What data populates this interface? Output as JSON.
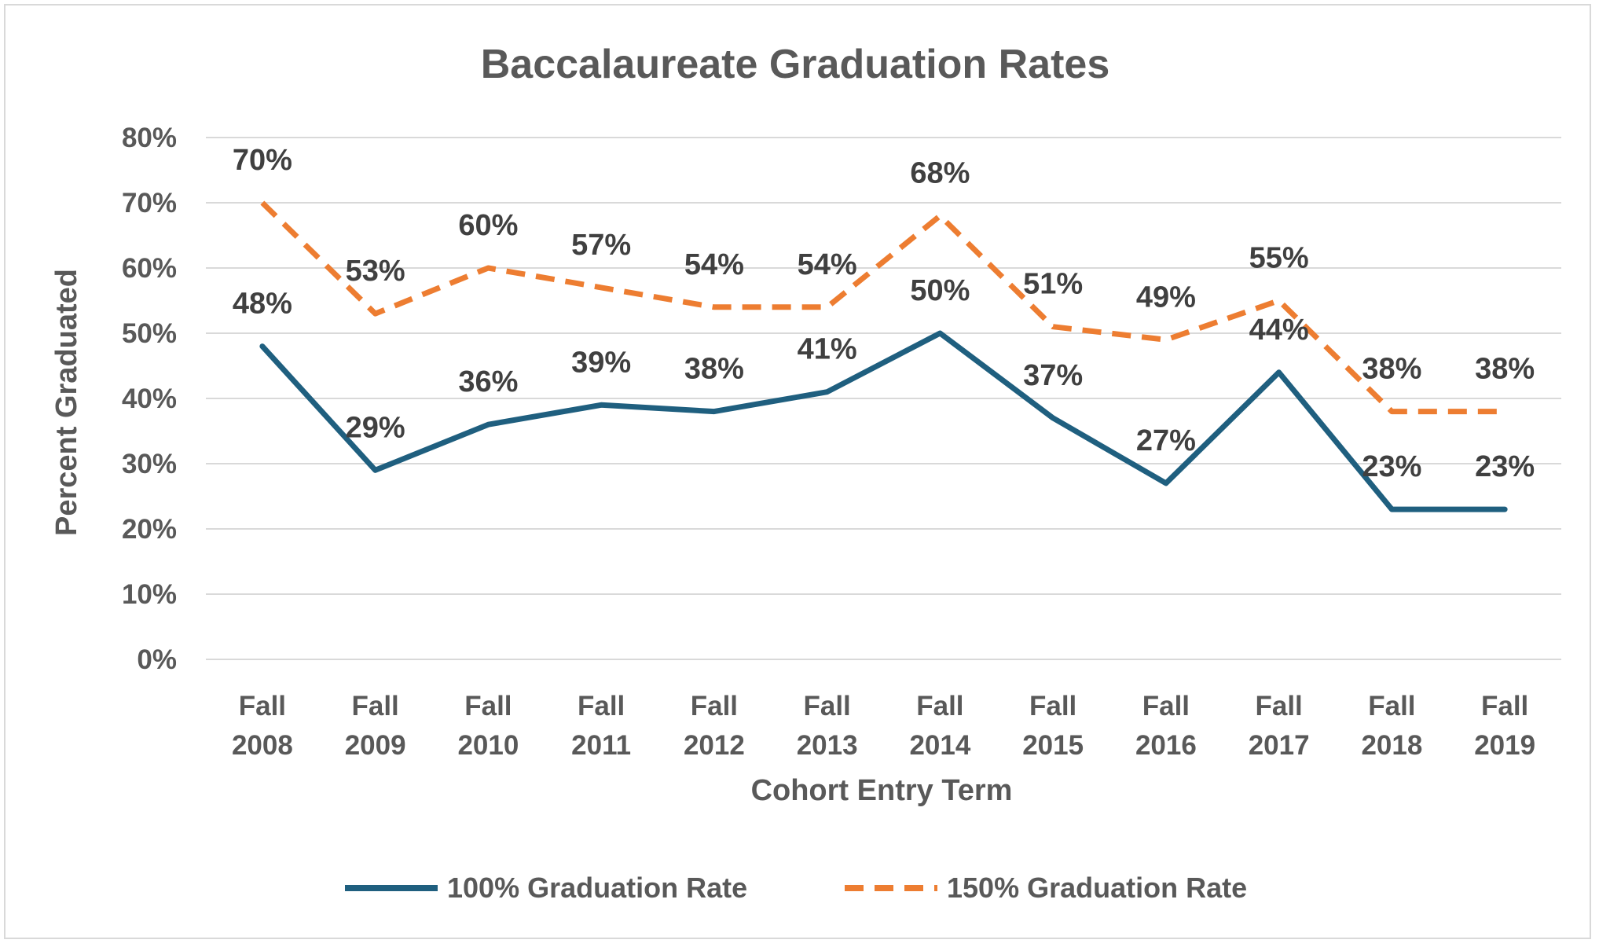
{
  "chart_data": {
    "type": "line",
    "title": "Baccalaureate Graduation Rates",
    "xlabel": "Cohort Entry Term",
    "ylabel": "Percent Graduated",
    "categories": [
      [
        "Fall",
        "2008"
      ],
      [
        "Fall",
        "2009"
      ],
      [
        "Fall",
        "2010"
      ],
      [
        "Fall",
        "2011"
      ],
      [
        "Fall",
        "2012"
      ],
      [
        "Fall",
        "2013"
      ],
      [
        "Fall",
        "2014"
      ],
      [
        "Fall",
        "2015"
      ],
      [
        "Fall",
        "2016"
      ],
      [
        "Fall",
        "2017"
      ],
      [
        "Fall",
        "2018"
      ],
      [
        "Fall",
        "2019"
      ]
    ],
    "ylim": [
      0,
      80
    ],
    "yticks": [
      "0%",
      "10%",
      "20%",
      "30%",
      "40%",
      "50%",
      "60%",
      "70%",
      "80%"
    ],
    "grid": true,
    "legend_position": "bottom",
    "series": [
      {
        "name": "100% Graduation Rate",
        "values": [
          48,
          29,
          36,
          39,
          38,
          41,
          50,
          37,
          27,
          44,
          23,
          23
        ],
        "labels": [
          "48%",
          "29%",
          "36%",
          "39%",
          "38%",
          "41%",
          "50%",
          "37%",
          "27%",
          "44%",
          "23%",
          "23%"
        ],
        "color": "#1f5f7f",
        "style": "solid"
      },
      {
        "name": "150% Graduation Rate",
        "values": [
          70,
          53,
          60,
          57,
          54,
          54,
          68,
          51,
          49,
          55,
          38,
          38
        ],
        "labels": [
          "70%",
          "53%",
          "60%",
          "57%",
          "54%",
          "54%",
          "68%",
          "51%",
          "49%",
          "55%",
          "38%",
          "38%"
        ],
        "color": "#ed7d31",
        "style": "dashed"
      }
    ]
  }
}
